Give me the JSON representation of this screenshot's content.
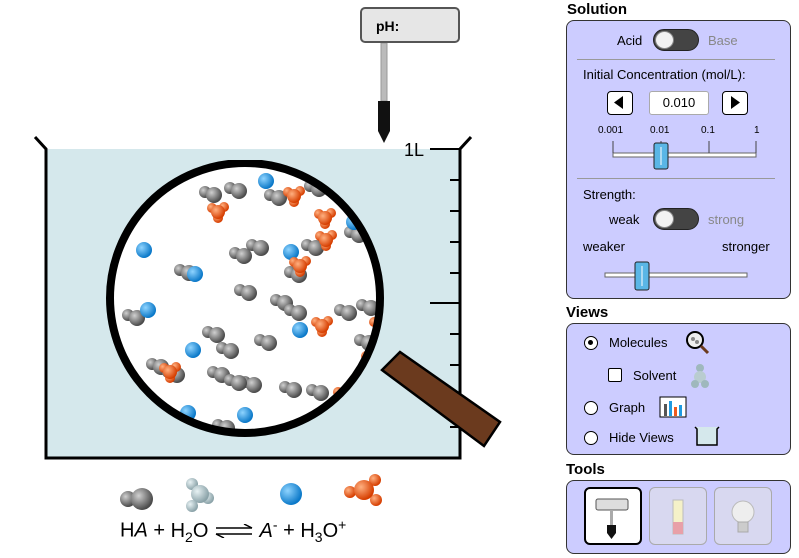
{
  "ph_meter": {
    "label": "pH:"
  },
  "beaker": {
    "volume_label": "1L"
  },
  "equation": {
    "reactant_acid": "HA",
    "reactant_water": "H2O",
    "product_anion": "A-",
    "product_hydronium": "H3O+"
  },
  "solution": {
    "title": "Solution",
    "acid_label": "Acid",
    "base_label": "Base",
    "concentration_label": "Initial Concentration (mol/L):",
    "concentration_value": "0.010",
    "conc_ticks": [
      "0.001",
      "0.01",
      "0.1",
      "1"
    ],
    "strength_label": "Strength:",
    "weak_label": "weak",
    "strong_label": "strong",
    "weaker_label": "weaker",
    "stronger_label": "stronger"
  },
  "views": {
    "title": "Views",
    "molecules_label": "Molecules",
    "solvent_label": "Solvent",
    "graph_label": "Graph",
    "hide_views_label": "Hide Views",
    "selected": "Molecules"
  },
  "tools": {
    "title": "Tools",
    "selected": "ph-meter-tool"
  },
  "colors": {
    "panel_bg": "#ccccff",
    "water": "#d5e8ec",
    "anion": "#1e9ae0",
    "hydronium": "#f05a1e",
    "acid": "#707070",
    "magnifier_handle": "#6b3a1e"
  }
}
